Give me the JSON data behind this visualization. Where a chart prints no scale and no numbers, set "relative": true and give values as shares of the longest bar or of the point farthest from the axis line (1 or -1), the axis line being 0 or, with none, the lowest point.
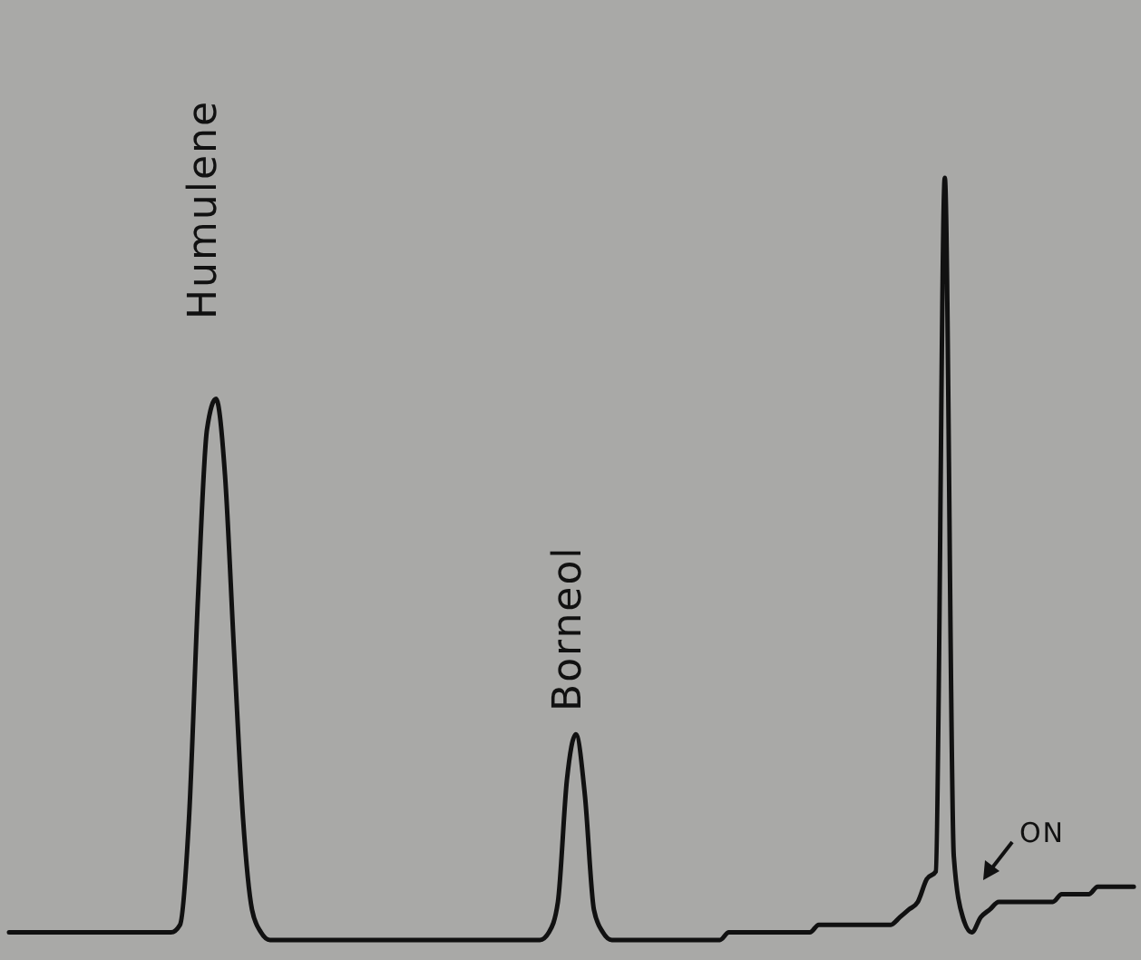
{
  "chart_data": {
    "type": "line",
    "relative": true,
    "categories": [
      null,
      null,
      null,
      null,
      null,
      null,
      null,
      null,
      null,
      null,
      null,
      null,
      null,
      null,
      null,
      null,
      null,
      null,
      null,
      null,
      null,
      null,
      null,
      null,
      null,
      null,
      null,
      null,
      null,
      null,
      null,
      null,
      null,
      null,
      null,
      null,
      null,
      null,
      null,
      null,
      null,
      null,
      null,
      null,
      null,
      null,
      null,
      null,
      null,
      null,
      null,
      null,
      null,
      null,
      null,
      null,
      null,
      null,
      null,
      null,
      null,
      null,
      null,
      null,
      null,
      null,
      null,
      null,
      null,
      null,
      null,
      null,
      null,
      null,
      null,
      null,
      null,
      null,
      null,
      null,
      null,
      null,
      null,
      null,
      null,
      null,
      null,
      null,
      null,
      null,
      null,
      null,
      null,
      null,
      null,
      null,
      null,
      null,
      null,
      null,
      null,
      null,
      null,
      null,
      null,
      null,
      null,
      null,
      null,
      null,
      null,
      null,
      null,
      null,
      null,
      null,
      null,
      null,
      null,
      null,
      null,
      null,
      null,
      null,
      null,
      null
    ],
    "series": [
      {
        "color": "#111111",
        "values": [
          0.01,
          0.01,
          0.01,
          0.01,
          0.01,
          0.01,
          0.01,
          0.01,
          0.01,
          0.01,
          0.01,
          0.01,
          0.01,
          0.01,
          0.01,
          0.01,
          0.01,
          0.01,
          0.01,
          0.02,
          0.16,
          0.45,
          0.67,
          0.71,
          0.61,
          0.38,
          0.16,
          0.04,
          0.01,
          0,
          0,
          0,
          0,
          0,
          0,
          0,
          0,
          0,
          0,
          0,
          0,
          0,
          0,
          0,
          0,
          0,
          0,
          0,
          0,
          0,
          0,
          0,
          0,
          0,
          0,
          0,
          0,
          0,
          0,
          0,
          0.01,
          0.05,
          0.21,
          0.27,
          0.19,
          0.04,
          0.01,
          0,
          0,
          0,
          0,
          0,
          0,
          0,
          0,
          0,
          0,
          0,
          0,
          0,
          0.01,
          0.01,
          0.01,
          0.01,
          0.01,
          0.01,
          0.01,
          0.01,
          0.01,
          0.01,
          0.02,
          0.02,
          0.02,
          0.02,
          0.02,
          0.02,
          0.02,
          0.02,
          0.02,
          0.03,
          0.04,
          0.05,
          0.08,
          0.09,
          1,
          0.11,
          0.03,
          0.01,
          0.03,
          0.04,
          0.05,
          0.05,
          0.05,
          0.05,
          0.05,
          0.05,
          0.05,
          0.06,
          0.06,
          0.06,
          0.06,
          0.07,
          0.07,
          0.07,
          0.07,
          0.07
        ]
      }
    ],
    "annotations": [
      "Humulene",
      "Borneol",
      "ON"
    ]
  }
}
